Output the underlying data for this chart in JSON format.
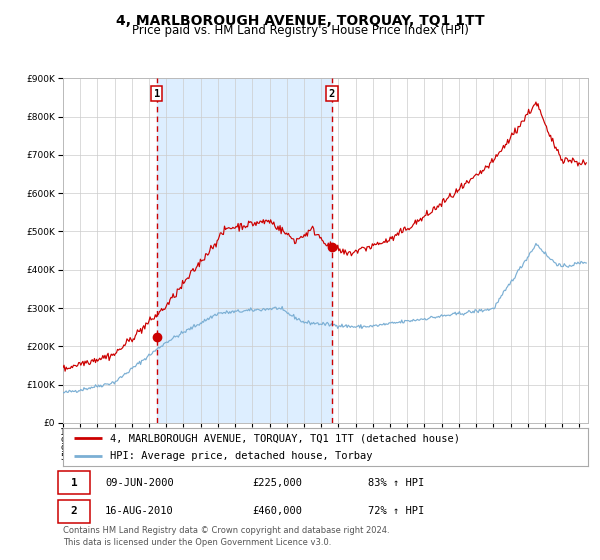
{
  "title": "4, MARLBOROUGH AVENUE, TORQUAY, TQ1 1TT",
  "subtitle": "Price paid vs. HM Land Registry's House Price Index (HPI)",
  "ylim": [
    0,
    900000
  ],
  "xlim_start": 1995.0,
  "xlim_end": 2025.5,
  "hpi_color": "#7bafd4",
  "price_color": "#cc0000",
  "bg_shade_color": "#ddeeff",
  "dashed_line_color": "#cc0000",
  "grid_color": "#cccccc",
  "annotation1_date": 2000.44,
  "annotation1_price": 225000,
  "annotation2_date": 2010.62,
  "annotation2_price": 460000,
  "legend_line1": "4, MARLBOROUGH AVENUE, TORQUAY, TQ1 1TT (detached house)",
  "legend_line2": "HPI: Average price, detached house, Torbay",
  "table_row1": [
    "1",
    "09-JUN-2000",
    "£225,000",
    "83% ↑ HPI"
  ],
  "table_row2": [
    "2",
    "16-AUG-2010",
    "£460,000",
    "72% ↑ HPI"
  ],
  "footnote": "Contains HM Land Registry data © Crown copyright and database right 2024.\nThis data is licensed under the Open Government Licence v3.0.",
  "title_fontsize": 10,
  "subtitle_fontsize": 8.5,
  "tick_fontsize": 6.5,
  "legend_fontsize": 7.5,
  "table_fontsize": 7.5,
  "footnote_fontsize": 6.0
}
